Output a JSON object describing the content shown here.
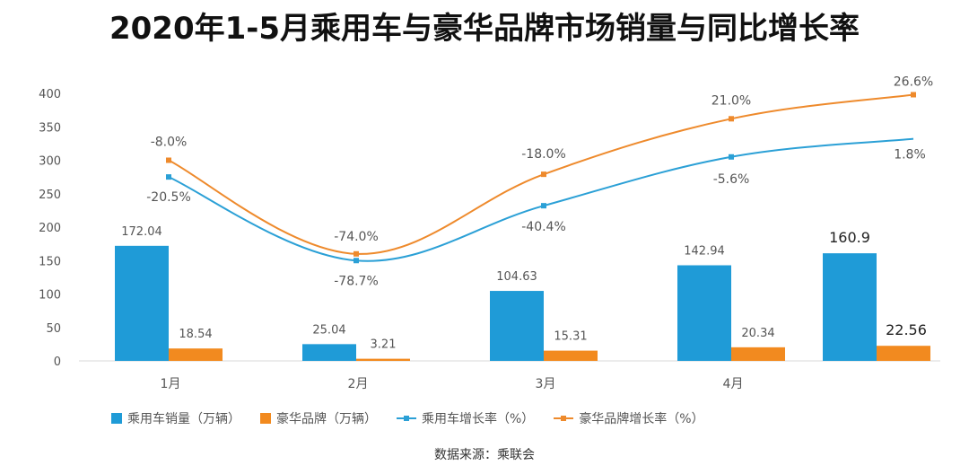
{
  "title": "2020年1-5月乘用车与豪华品牌市场销量与同比增长率",
  "source": "数据来源：乘联会",
  "chart_data": {
    "type": "bar",
    "categories": [
      "1月",
      "2月",
      "3月",
      "4月",
      ""
    ],
    "ylim": [
      0,
      400
    ],
    "yticks": [
      0,
      50,
      100,
      150,
      200,
      250,
      300,
      350,
      400
    ],
    "series": [
      {
        "name": "乘用车销量（万辆）",
        "kind": "bar",
        "color": "#1f9bd7",
        "values": [
          172.04,
          25.04,
          104.63,
          142.94,
          160.9
        ],
        "labels": [
          "172.04",
          "25.04",
          "104.63",
          "142.94",
          "160.9"
        ]
      },
      {
        "name": "豪华品牌（万辆）",
        "kind": "bar",
        "color": "#f28a1f",
        "values": [
          18.54,
          3.21,
          15.31,
          20.34,
          22.56
        ],
        "labels": [
          "18.54",
          "3.21",
          "15.31",
          "20.34",
          "22.56"
        ]
      },
      {
        "name": "乘用车增长率（%）",
        "kind": "line",
        "color": "#2ba0d6",
        "rates": [
          -20.5,
          -78.7,
          -40.4,
          -5.6,
          1.8
        ],
        "labels": [
          "-20.5%",
          "-78.7%",
          "-40.4%",
          "-5.6%",
          "1.8%"
        ],
        "plot_values": [
          275,
          150,
          232,
          305,
          332
        ]
      },
      {
        "name": "豪华品牌增长率（%）",
        "kind": "line",
        "color": "#ee8a2c",
        "rates": [
          -8.0,
          -74.0,
          -18.0,
          21.0,
          26.6
        ],
        "labels": [
          "-8.0%",
          "-74.0%",
          "-18.0%",
          "21.0%",
          "26.6%"
        ],
        "plot_values": [
          300,
          160,
          279,
          362,
          398
        ]
      }
    ]
  }
}
